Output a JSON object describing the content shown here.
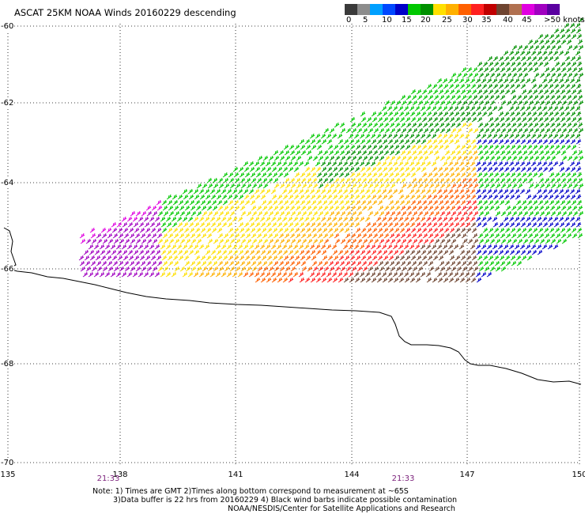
{
  "title": "ASCAT 25KM NOAA Winds 20160229 descending",
  "legend": {
    "colors": [
      "#3a3a3a",
      "#8c8c8c",
      "#00a0ff",
      "#0048ff",
      "#0000c8",
      "#00c800",
      "#009000",
      "#ffe000",
      "#ffb000",
      "#ff6000",
      "#ff2020",
      "#c00000",
      "#6e4430",
      "#b07050",
      "#e000e0",
      "#a000c0",
      "#5a00a0"
    ],
    "labels": [
      {
        "text": "0",
        "x": 438
      },
      {
        "text": "5",
        "x": 459
      },
      {
        "text": "10",
        "x": 483
      },
      {
        "text": "15",
        "x": 508
      },
      {
        "text": "20",
        "x": 532
      },
      {
        "text": "25",
        "x": 559
      },
      {
        "text": "30",
        "x": 585
      },
      {
        "text": "35",
        "x": 609
      },
      {
        "text": "40",
        "x": 636
      },
      {
        "text": "45",
        "x": 660
      },
      {
        "text": ">50 knots",
        "x": 688
      }
    ]
  },
  "axes": {
    "lat_labels": [
      {
        "text": "-60",
        "y": 28
      },
      {
        "text": "-62",
        "y": 125
      },
      {
        "text": "-64",
        "y": 226
      },
      {
        "text": "-66",
        "y": 335
      },
      {
        "text": "-68",
        "y": 455
      },
      {
        "text": "-70",
        "y": 580
      }
    ],
    "lon_labels": [
      {
        "text": "135",
        "x": 10
      },
      {
        "text": "138",
        "x": 152
      },
      {
        "text": "141",
        "x": 298
      },
      {
        "text": "144",
        "x": 445
      },
      {
        "text": "147",
        "x": 591
      },
      {
        "text": "150",
        "x": 733
      }
    ]
  },
  "times": [
    {
      "text": "21:33",
      "x": 137
    },
    {
      "text": "21:33",
      "x": 510
    }
  ],
  "notes": [
    "Note: 1) Times are GMT 2)Times along bottom correspond to measurement at ~65S",
    "3)Data buffer is 22 hrs from 20160229 4) Black wind barbs indicate possible contamination",
    "NOAA/NESDIS/Center for Satellite Applications and Research"
  ],
  "map_data": {
    "lat_range": [
      -70,
      -60
    ],
    "lon_range": [
      135,
      150
    ],
    "coastline_description": "Antarctic coastline from ~135E to 150E near 66-68S"
  }
}
